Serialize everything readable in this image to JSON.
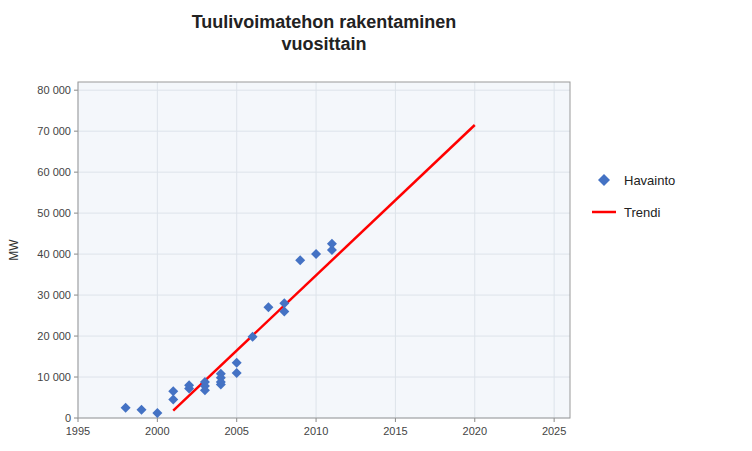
{
  "chart_data": {
    "type": "scatter",
    "title": "Tuulivoimatehon rakentaminen\nvuosittain",
    "ylabel": "MW",
    "xlim": [
      1995,
      2026
    ],
    "ylim": [
      0,
      82000
    ],
    "xticks": [
      1995,
      2000,
      2005,
      2010,
      2015,
      2020,
      2025
    ],
    "yticks": [
      0,
      {
        "value": 10000,
        "label": "10 000"
      },
      {
        "value": 20000,
        "label": "20 000"
      },
      {
        "value": 30000,
        "label": "30 000"
      },
      {
        "value": 40000,
        "label": "40 000"
      },
      {
        "value": 50000,
        "label": "50 000"
      },
      {
        "value": 60000,
        "label": "60 000"
      },
      {
        "value": 70000,
        "label": "70 000"
      },
      {
        "value": 80000,
        "label": "80 000"
      }
    ],
    "grid": true,
    "legend": "right",
    "series": [
      {
        "name": "Havainto",
        "type": "scatter",
        "color": "#4472C4",
        "marker": "diamond",
        "x": [
          1998,
          1999,
          2000,
          2001,
          2001,
          2002,
          2002,
          2003,
          2003,
          2003,
          2004,
          2004,
          2004,
          2004,
          2005,
          2005,
          2006,
          2007,
          2008,
          2008,
          2009,
          2010,
          2011,
          2011
        ],
        "values": [
          2500,
          2000,
          1200,
          6500,
          4500,
          7200,
          8000,
          7800,
          6800,
          8800,
          8200,
          9800,
          10800,
          8800,
          13500,
          11000,
          19800,
          27000,
          26000,
          28000,
          38500,
          40000,
          41000,
          42500
        ]
      },
      {
        "name": "Trendi",
        "type": "line",
        "color": "#FF0000",
        "line_style": "solid",
        "x": [
          2001.0,
          2020.0
        ],
        "values": [
          1800,
          71500
        ]
      }
    ]
  }
}
